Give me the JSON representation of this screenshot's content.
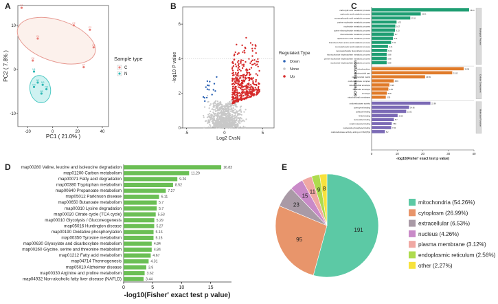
{
  "chart_data": [
    {
      "panel": "A",
      "type": "scatter",
      "xlabel": "PC1 ( 21.0% )",
      "ylabel": "PC2 ( 7.8% )",
      "xticks": [
        "-20",
        "0",
        "20",
        "40"
      ],
      "yticks": [
        "-10",
        "0",
        "10"
      ],
      "xlim": [
        -28,
        45
      ],
      "ylim": [
        -13,
        14.5
      ],
      "legend_title": "Sample type",
      "groups": [
        {
          "name": "C",
          "color": "#e9807a",
          "points": [
            [
              -25,
              14
            ],
            [
              17,
              10
            ],
            [
              30,
              9
            ],
            [
              -12,
              7
            ],
            [
              33,
              5
            ],
            [
              -16,
              2
            ],
            [
              25,
              0.5
            ]
          ],
          "labels": [
            "C1",
            "C2",
            "C3",
            "C4",
            "C5",
            "C6",
            "C7"
          ]
        },
        {
          "name": "N",
          "color": "#2fb8b5",
          "points": [
            [
              -15,
              -0.5
            ],
            [
              -12,
              -3
            ],
            [
              -8,
              -3.5
            ],
            [
              -15,
              -4
            ],
            [
              -5,
              -4.5
            ],
            [
              -9,
              -5.5
            ]
          ],
          "labels": [
            "N1",
            "N2",
            "N3",
            "N4",
            "N5",
            "N6"
          ]
        }
      ]
    },
    {
      "panel": "B",
      "type": "scatter",
      "xlabel": "Log2 CvsN",
      "ylabel": "-log10 P value",
      "xticks": [
        "-5",
        "0",
        "5"
      ],
      "yticks": [
        "0",
        "2",
        "4",
        "6"
      ],
      "xlim": [
        -5.5,
        6.5
      ],
      "ylim": [
        0,
        7
      ],
      "threshold_y": 1.3,
      "legend_title": "Regulated.Type",
      "legend": [
        {
          "name": "Down",
          "color": "#2c63b5"
        },
        {
          "name": "None",
          "color": "#c8c8c8"
        },
        {
          "name": "Up",
          "color": "#d62a2a"
        }
      ]
    },
    {
      "panel": "C",
      "type": "bar",
      "xlabel": "-log10(Fisher' exact test p value)",
      "ylabel": "GO Terms Description",
      "xticks": [
        "0",
        "10",
        "20",
        "30",
        "40"
      ],
      "xlim": [
        0,
        40
      ],
      "groups": [
        {
          "name": "Biological Process",
          "color": "#1f9e73",
          "categories": [
            "carboxylic acid metabolic process",
            "carboxylic acid catabolic process",
            "monocarboxylic acid metabolic process",
            "purine nucleotide metabolic process",
            "nucleotide metabolic process",
            "purine ribonucleotide metabolic process",
            "ribonucleotide metabolic process",
            "alpha-amino acid metabolic process",
            "branched-chain amino acid catabolic process",
            "monocarboxylic acid catabolic process",
            "monosaccharide biosynthetic process",
            "ribonucleoside bisphosphate metabolic process",
            "purine nucleoside bisphosphate metabolic process",
            "nucleoside bisphosphate metabolic process"
          ],
          "values": [
            38.11,
            19.21,
            15.11,
            9.75,
            9.27,
            9.13,
            8.7,
            8.31,
            7.63,
            6.41,
            6.09,
            5.88,
            5.88,
            5.88
          ]
        },
        {
          "name": "Cellular Component",
          "color": "#e07b2a",
          "categories": [
            "mitochondrion",
            "mitochondrial part",
            "mitochondrial matrix",
            "oxidoreductase complex",
            "mitochondrial envelope",
            "organelle envelope",
            "envelope",
            "mitochondrial membrane"
          ],
          "values": [
            35.98,
            31.52,
            20.89,
            8.65,
            6.96,
            6.55,
            5.95,
            5.55
          ]
        },
        {
          "name": "Molecular Function",
          "color": "#7b6ab5",
          "categories": [
            "oxidoreductase activity",
            "coenzyme binding",
            "cofactor binding",
            "NAD binding",
            "nucleotide binding",
            "small molecule binding",
            "nucleoside phosphate binding",
            "oxidoreductase activity, acting on NAD(P)H"
          ],
          "values": [
            22.98,
            14.66,
            13.52,
            10.16,
            8.7,
            7.86,
            7.65,
            5.2
          ]
        }
      ]
    },
    {
      "panel": "D",
      "type": "bar",
      "xlabel": "-log10(Fisher' exact test p value)",
      "xticks": [
        "0",
        "5",
        "10",
        "15"
      ],
      "xlim": [
        0,
        18.6
      ],
      "color": "#6bbf55",
      "categories": [
        "map00280 Valine, leucine and isoleucine degradation",
        "map01200 Carbon metabolism",
        "map00071 Fatty acid degradation",
        "map00380 Tryptophan metabolism",
        "map00640 Propanoate metabolism",
        "map05012 Parkinson disease",
        "map00650 Butanoate metabolism",
        "map00310 Lysine degradation",
        "map00020 Citrate cycle (TCA cycle)",
        "map00010 Glycolysis / Gluconeogenesis",
        "map05016 Huntington disease",
        "map00190 Oxidative phosphorylation",
        "map00350 Tyrosine metabolism",
        "map00630 Glyoxylate and dicarboxylate metabolism",
        "map00260 Glycine, serine and threonine metabolism",
        "map01212 Fatty acid metabolism",
        "map04714 Thermogenesis",
        "map05010 Alzheimer disease",
        "map00330 Arginine and proline metabolism",
        "map04932 Non-alcoholic fatty liver disease (NAFLD)"
      ],
      "values": [
        16.83,
        11.29,
        9.26,
        8.52,
        7.27,
        6.11,
        5.7,
        5.7,
        5.53,
        5.29,
        5.27,
        5.16,
        5.15,
        4.84,
        4.84,
        4.67,
        4.31,
        3.9,
        3.62,
        3.44
      ],
      "value_labels": [
        "16.83",
        "11.29",
        "9.26",
        "8.52",
        "7.27",
        "6.11",
        "5.7",
        "5.7",
        "5.53",
        "5.29",
        "5.27",
        "5.16",
        "5.15",
        "4.84",
        "4.84",
        "4.67",
        "4.31",
        "3.9",
        "3.62",
        "3.44"
      ]
    },
    {
      "panel": "E",
      "type": "pie",
      "categories": [
        "mitochondria (54.26%)",
        "cytoplasm (26.99%)",
        "extracellular (6.53%)",
        "nucleus (4.26%)",
        "plasma membrane (3.12%)",
        "endoplasmic reticulum (2.56%)",
        "other (2.27%)"
      ],
      "values": [
        191,
        95,
        23,
        15,
        11,
        9,
        8
      ],
      "colors": [
        "#5cc9a5",
        "#e8956b",
        "#a99aa6",
        "#c98ac8",
        "#f0a8a3",
        "#aedb4e",
        "#f7e23c"
      ]
    }
  ],
  "panels": {
    "a": "A",
    "b": "B",
    "c": "C",
    "d": "D",
    "e": "E"
  }
}
